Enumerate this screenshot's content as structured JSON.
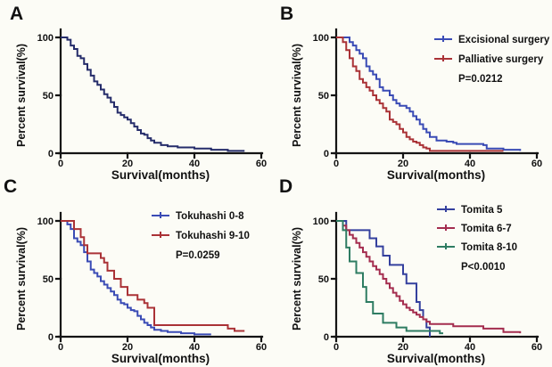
{
  "figure": {
    "background": "#fcfcf6",
    "axis_color": "#141414",
    "text_color": "#111111"
  },
  "chart_data": [
    {
      "type": "line",
      "panel_label": "A",
      "title": "",
      "xlabel": "Survival(months)",
      "ylabel": "Percent survival(%)",
      "xlim": [
        0,
        60
      ],
      "ylim": [
        0,
        100
      ],
      "xticks": [
        0,
        20,
        40,
        60
      ],
      "yticks": [
        0,
        50,
        100
      ],
      "grid": false,
      "legend_position": "none",
      "series": [
        {
          "color": "#252c6a",
          "points": [
            [
              0,
              100
            ],
            [
              2,
              98
            ],
            [
              3,
              93
            ],
            [
              4,
              90
            ],
            [
              5,
              84
            ],
            [
              6,
              82
            ],
            [
              7,
              77
            ],
            [
              8,
              72
            ],
            [
              9,
              67
            ],
            [
              10,
              62
            ],
            [
              11,
              59
            ],
            [
              12,
              55
            ],
            [
              13,
              51
            ],
            [
              14,
              48
            ],
            [
              15,
              44
            ],
            [
              16,
              40
            ],
            [
              17,
              35
            ],
            [
              18,
              33
            ],
            [
              19,
              31
            ],
            [
              20,
              29
            ],
            [
              21,
              26
            ],
            [
              22,
              23
            ],
            [
              23,
              20
            ],
            [
              24,
              17
            ],
            [
              25,
              16
            ],
            [
              26,
              13
            ],
            [
              27,
              11
            ],
            [
              28,
              9
            ],
            [
              30,
              7
            ],
            [
              32,
              6
            ],
            [
              35,
              5
            ],
            [
              36,
              5
            ],
            [
              40,
              4
            ],
            [
              44,
              4
            ],
            [
              45,
              3
            ],
            [
              50,
              2
            ],
            [
              55,
              2
            ]
          ]
        }
      ]
    },
    {
      "type": "line",
      "panel_label": "B",
      "title": "",
      "xlabel": "Survival(months)",
      "ylabel": "Percent survival(%)",
      "xlim": [
        0,
        60
      ],
      "ylim": [
        0,
        100
      ],
      "xticks": [
        0,
        20,
        40,
        60
      ],
      "yticks": [
        0,
        50,
        100
      ],
      "grid": false,
      "legend_position": "top-right",
      "p_value": "P=0.0212",
      "series": [
        {
          "name": "Excisional surgery",
          "color": "#3a4bb5",
          "points": [
            [
              0,
              100
            ],
            [
              4,
              96
            ],
            [
              5,
              93
            ],
            [
              6,
              89
            ],
            [
              7,
              86
            ],
            [
              8,
              82
            ],
            [
              9,
              75
            ],
            [
              10,
              71
            ],
            [
              11,
              68
            ],
            [
              12,
              64
            ],
            [
              13,
              57
            ],
            [
              14,
              54
            ],
            [
              16,
              50
            ],
            [
              17,
              46
            ],
            [
              18,
              43
            ],
            [
              19,
              41
            ],
            [
              21,
              39
            ],
            [
              22,
              36
            ],
            [
              23,
              32
            ],
            [
              24,
              29
            ],
            [
              25,
              25
            ],
            [
              26,
              21
            ],
            [
              27,
              18
            ],
            [
              28,
              14
            ],
            [
              30,
              11
            ],
            [
              33,
              10
            ],
            [
              35,
              9
            ],
            [
              36,
              8
            ],
            [
              44,
              7
            ],
            [
              45,
              4
            ],
            [
              50,
              3
            ],
            [
              55,
              2
            ]
          ]
        },
        {
          "name": "Palliative surgery",
          "color": "#aa3236",
          "points": [
            [
              0,
              100
            ],
            [
              2,
              96
            ],
            [
              3,
              89
            ],
            [
              4,
              82
            ],
            [
              5,
              75
            ],
            [
              6,
              71
            ],
            [
              7,
              64
            ],
            [
              8,
              61
            ],
            [
              9,
              57
            ],
            [
              10,
              54
            ],
            [
              11,
              50
            ],
            [
              12,
              46
            ],
            [
              13,
              43
            ],
            [
              14,
              39
            ],
            [
              15,
              36
            ],
            [
              16,
              29
            ],
            [
              17,
              27
            ],
            [
              18,
              25
            ],
            [
              19,
              21
            ],
            [
              20,
              18
            ],
            [
              21,
              14
            ],
            [
              22,
              12
            ],
            [
              23,
              10
            ],
            [
              24,
              9
            ],
            [
              25,
              7
            ],
            [
              26,
              5
            ],
            [
              27,
              4
            ],
            [
              28,
              2
            ],
            [
              50,
              2
            ]
          ]
        }
      ]
    },
    {
      "type": "line",
      "panel_label": "C",
      "title": "",
      "xlabel": "Survival(months)",
      "ylabel": "Percent survival(%)",
      "xlim": [
        0,
        60
      ],
      "ylim": [
        0,
        100
      ],
      "xticks": [
        0,
        20,
        40,
        60
      ],
      "yticks": [
        0,
        50,
        100
      ],
      "grid": false,
      "legend_position": "top-right",
      "p_value": "P=0.0259",
      "series": [
        {
          "name": "Tokuhashi 0-8",
          "color": "#3a4bb5",
          "points": [
            [
              0,
              100
            ],
            [
              2,
              97
            ],
            [
              3,
              93
            ],
            [
              4,
              85
            ],
            [
              5,
              82
            ],
            [
              6,
              79
            ],
            [
              7,
              73
            ],
            [
              8,
              65
            ],
            [
              9,
              58
            ],
            [
              10,
              55
            ],
            [
              11,
              52
            ],
            [
              12,
              48
            ],
            [
              13,
              45
            ],
            [
              14,
              42
            ],
            [
              15,
              39
            ],
            [
              16,
              36
            ],
            [
              17,
              32
            ],
            [
              18,
              29
            ],
            [
              19,
              28
            ],
            [
              20,
              25
            ],
            [
              21,
              23
            ],
            [
              22,
              22
            ],
            [
              23,
              18
            ],
            [
              24,
              15
            ],
            [
              25,
              12
            ],
            [
              26,
              10
            ],
            [
              27,
              8
            ],
            [
              28,
              6
            ],
            [
              30,
              5
            ],
            [
              32,
              4
            ],
            [
              36,
              3
            ],
            [
              40,
              2
            ],
            [
              45,
              2
            ]
          ]
        },
        {
          "name": "Tokuhashi 9-10",
          "color": "#aa3236",
          "points": [
            [
              0,
              100
            ],
            [
              4,
              93
            ],
            [
              6,
              86
            ],
            [
              7,
              79
            ],
            [
              8,
              72
            ],
            [
              12,
              68
            ],
            [
              13,
              64
            ],
            [
              14,
              57
            ],
            [
              16,
              50
            ],
            [
              18,
              43
            ],
            [
              20,
              36
            ],
            [
              23,
              32
            ],
            [
              25,
              29
            ],
            [
              26,
              25
            ],
            [
              28,
              10
            ],
            [
              50,
              7
            ],
            [
              52,
              5
            ],
            [
              55,
              5
            ]
          ]
        }
      ]
    },
    {
      "type": "line",
      "panel_label": "D",
      "title": "",
      "xlabel": "Survival(months)",
      "ylabel": "Percent survival(%)",
      "xlim": [
        0,
        60
      ],
      "ylim": [
        0,
        100
      ],
      "xticks": [
        0,
        20,
        40,
        60
      ],
      "yticks": [
        0,
        50,
        100
      ],
      "grid": false,
      "legend_position": "top-right",
      "p_value": "P<0.0010",
      "series": [
        {
          "name": "Tomita 5",
          "color": "#34409e",
          "points": [
            [
              0,
              100
            ],
            [
              3,
              92
            ],
            [
              10,
              85
            ],
            [
              12,
              78
            ],
            [
              14,
              70
            ],
            [
              16,
              62
            ],
            [
              20,
              54
            ],
            [
              21,
              46
            ],
            [
              24,
              30
            ],
            [
              25,
              23
            ],
            [
              26,
              15
            ],
            [
              27,
              8
            ],
            [
              28,
              0
            ]
          ]
        },
        {
          "name": "Tomita 6-7",
          "color": "#a42d4f",
          "points": [
            [
              0,
              100
            ],
            [
              2,
              96
            ],
            [
              3,
              92
            ],
            [
              4,
              88
            ],
            [
              5,
              85
            ],
            [
              6,
              81
            ],
            [
              7,
              77
            ],
            [
              8,
              73
            ],
            [
              9,
              69
            ],
            [
              10,
              65
            ],
            [
              11,
              61
            ],
            [
              12,
              58
            ],
            [
              13,
              54
            ],
            [
              14,
              50
            ],
            [
              15,
              46
            ],
            [
              16,
              42
            ],
            [
              17,
              38
            ],
            [
              18,
              35
            ],
            [
              19,
              31
            ],
            [
              20,
              28
            ],
            [
              21,
              25
            ],
            [
              22,
              23
            ],
            [
              23,
              21
            ],
            [
              24,
              19
            ],
            [
              25,
              17
            ],
            [
              26,
              15
            ],
            [
              27,
              13
            ],
            [
              28,
              11
            ],
            [
              35,
              9
            ],
            [
              44,
              7
            ],
            [
              50,
              4
            ],
            [
              55,
              3
            ]
          ]
        },
        {
          "name": "Tomita 8-10",
          "color": "#2e7c62",
          "points": [
            [
              0,
              100
            ],
            [
              2,
              92
            ],
            [
              3,
              77
            ],
            [
              4,
              65
            ],
            [
              6,
              55
            ],
            [
              8,
              43
            ],
            [
              9,
              30
            ],
            [
              11,
              20
            ],
            [
              14,
              12
            ],
            [
              18,
              8
            ],
            [
              21,
              5
            ],
            [
              31,
              3
            ],
            [
              32,
              3
            ]
          ]
        }
      ]
    }
  ]
}
